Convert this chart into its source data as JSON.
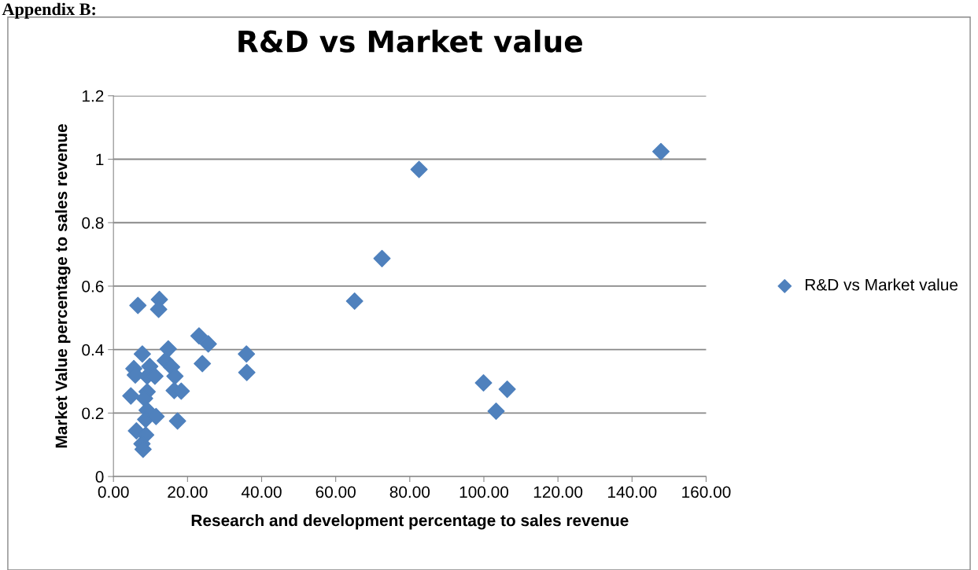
{
  "chart_data": {
    "type": "scatter",
    "title": "R&D vs Market value",
    "xlabel": "Research and development percentage to sales revenue",
    "ylabel": "Market Value percentage to sales revenue",
    "annotations": [
      "Appendix B:"
    ],
    "series": [
      {
        "name": "R&D vs Market value",
        "color": "#4f81bd",
        "x": [
          147.8,
          82.5,
          72.5,
          65.1,
          99.9,
          106.3,
          103.3,
          35.9,
          36.0,
          23.1,
          25.6,
          24.0,
          6.6,
          12.4,
          12.2,
          7.8,
          14.8,
          5.5,
          5.9,
          9.8,
          9.1,
          11.2,
          14.0,
          15.7,
          16.6,
          4.7,
          9.1,
          8.4,
          16.4,
          18.3,
          9.1,
          8.7,
          11.5,
          17.3,
          6.2,
          8.7,
          7.7,
          8.0
        ],
        "values": [
          1.024,
          0.968,
          0.687,
          0.553,
          0.295,
          0.275,
          0.206,
          0.386,
          0.328,
          0.443,
          0.418,
          0.356,
          0.539,
          0.558,
          0.527,
          0.386,
          0.402,
          0.34,
          0.32,
          0.347,
          0.316,
          0.316,
          0.365,
          0.345,
          0.316,
          0.254,
          0.267,
          0.246,
          0.271,
          0.269,
          0.209,
          0.18,
          0.189,
          0.175,
          0.144,
          0.131,
          0.103,
          0.086
        ]
      }
    ],
    "xlim": [
      0,
      160
    ],
    "xticks": [
      {
        "value": 0,
        "label": "0.00"
      },
      {
        "value": 20,
        "label": "20.00"
      },
      {
        "value": 40,
        "label": "40.00"
      },
      {
        "value": 60,
        "label": "60.00"
      },
      {
        "value": 80,
        "label": "80.00"
      },
      {
        "value": 100,
        "label": "100.00"
      },
      {
        "value": 120,
        "label": "120.00"
      },
      {
        "value": 140,
        "label": "140.00"
      },
      {
        "value": 160,
        "label": "160.00"
      }
    ],
    "ylim": [
      0,
      1.2
    ],
    "yticks": [
      0,
      0.2,
      0.4,
      0.6,
      0.8,
      1,
      1.2
    ],
    "grid": "y",
    "legend": "right",
    "marker": "diamond"
  }
}
